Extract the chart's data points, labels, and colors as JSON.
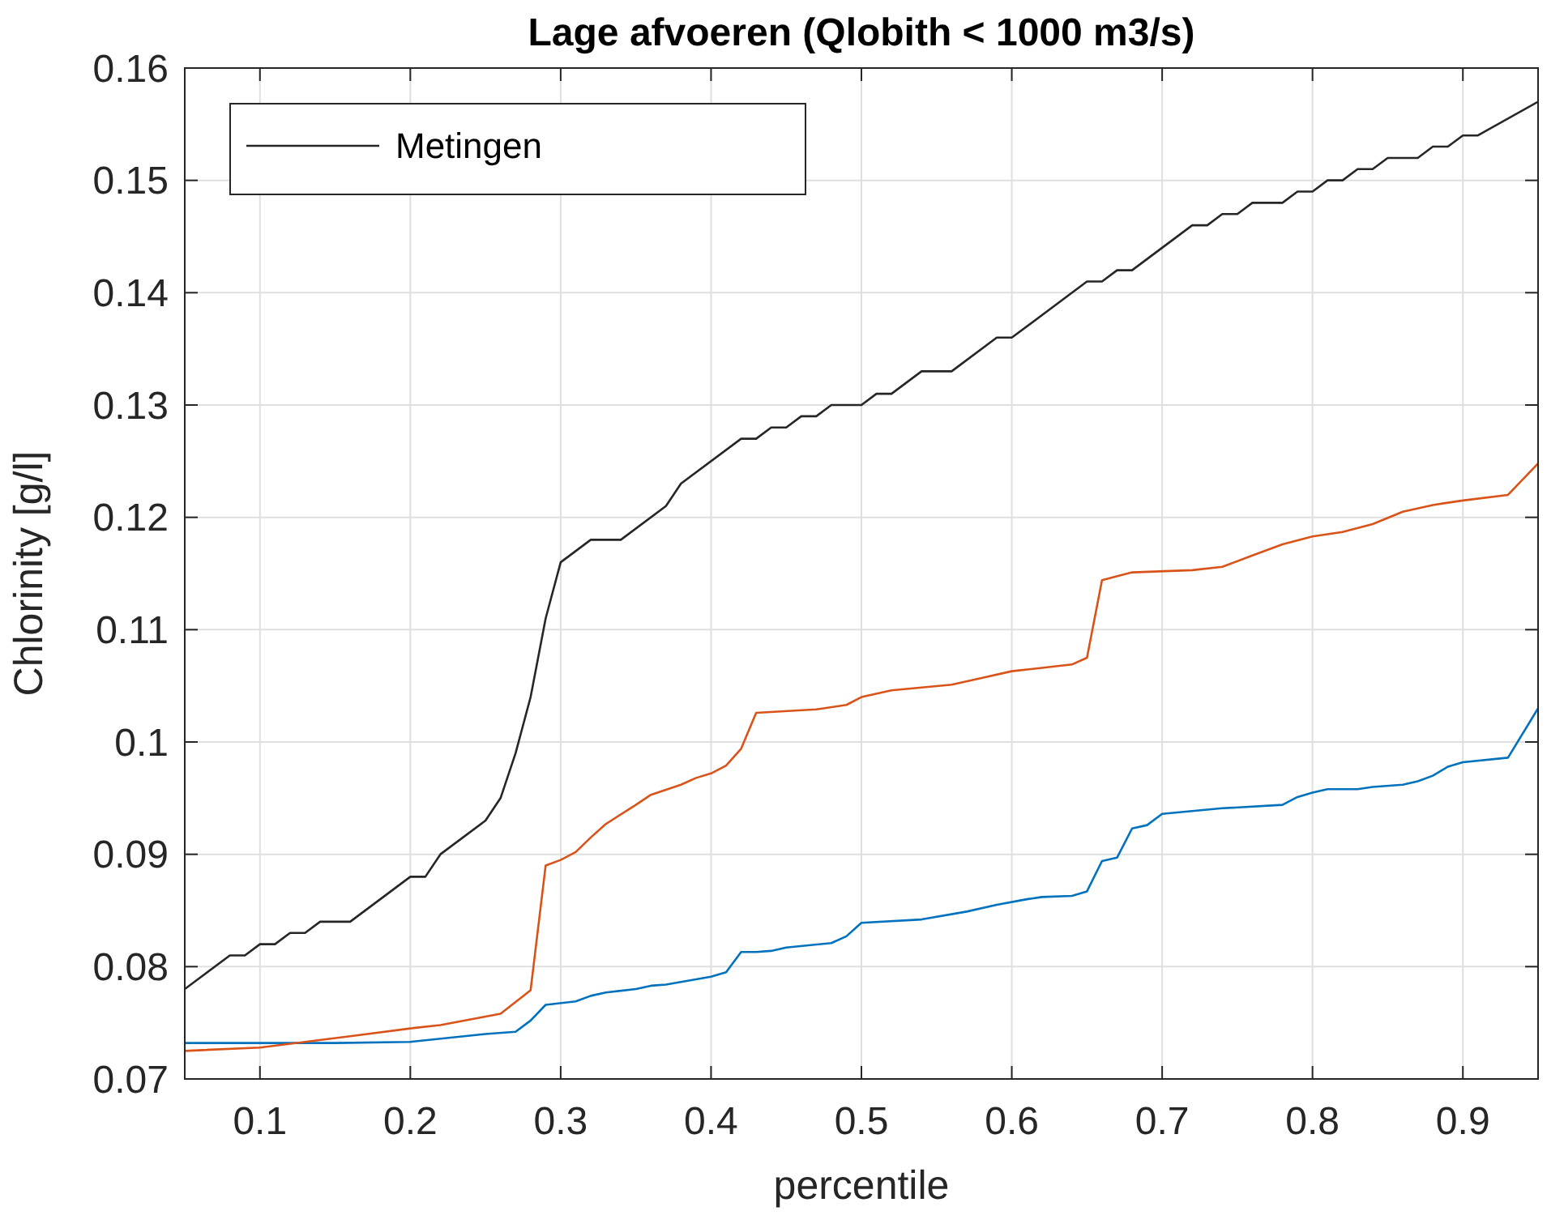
{
  "chart_data": {
    "type": "line",
    "title": "Lage afvoeren (Qlobith < 1000 m3/s)",
    "xlabel": "percentile",
    "ylabel": "Chlorinity [g/l]",
    "xlim": [
      0.05,
      0.95
    ],
    "xticks": [
      0.1,
      0.2,
      0.3,
      0.4,
      0.5,
      0.6,
      0.7,
      0.8,
      0.9
    ],
    "ylim": [
      0.07,
      0.16
    ],
    "yticks": [
      0.07,
      0.08,
      0.09,
      0.1,
      0.11,
      0.12,
      0.13,
      0.14,
      0.15,
      0.16
    ],
    "grid": true,
    "legend": "top left",
    "line_style": "solid",
    "series": [
      {
        "name": "Metingen",
        "color": "#262626",
        "x": [
          0.05,
          0.08,
          0.09,
          0.1,
          0.11,
          0.12,
          0.13,
          0.14,
          0.16,
          0.2,
          0.21,
          0.22,
          0.25,
          0.26,
          0.27,
          0.28,
          0.29,
          0.3,
          0.32,
          0.34,
          0.37,
          0.38,
          0.42,
          0.43,
          0.44,
          0.45,
          0.46,
          0.47,
          0.48,
          0.5,
          0.51,
          0.52,
          0.54,
          0.56,
          0.59,
          0.6,
          0.65,
          0.66,
          0.67,
          0.68,
          0.72,
          0.73,
          0.74,
          0.75,
          0.76,
          0.78,
          0.79,
          0.8,
          0.81,
          0.82,
          0.83,
          0.84,
          0.85,
          0.87,
          0.88,
          0.89,
          0.9,
          0.91,
          0.95
        ],
        "values": [
          0.078,
          0.081,
          0.081,
          0.082,
          0.082,
          0.083,
          0.083,
          0.084,
          0.084,
          0.088,
          0.088,
          0.09,
          0.093,
          0.095,
          0.099,
          0.104,
          0.111,
          0.116,
          0.118,
          0.118,
          0.121,
          0.123,
          0.127,
          0.127,
          0.128,
          0.128,
          0.129,
          0.129,
          0.13,
          0.13,
          0.131,
          0.131,
          0.133,
          0.133,
          0.136,
          0.136,
          0.141,
          0.141,
          0.142,
          0.142,
          0.146,
          0.146,
          0.147,
          0.147,
          0.148,
          0.148,
          0.149,
          0.149,
          0.15,
          0.15,
          0.151,
          0.151,
          0.152,
          0.152,
          0.153,
          0.153,
          0.154,
          0.154,
          0.157
        ]
      },
      {
        "color": "#0072bd",
        "x": [
          0.05,
          0.15,
          0.2,
          0.25,
          0.27,
          0.28,
          0.29,
          0.31,
          0.32,
          0.33,
          0.35,
          0.36,
          0.37,
          0.4,
          0.41,
          0.42,
          0.43,
          0.44,
          0.45,
          0.48,
          0.49,
          0.5,
          0.54,
          0.57,
          0.59,
          0.61,
          0.62,
          0.64,
          0.65,
          0.66,
          0.67,
          0.68,
          0.69,
          0.7,
          0.74,
          0.78,
          0.79,
          0.8,
          0.81,
          0.83,
          0.84,
          0.86,
          0.87,
          0.88,
          0.89,
          0.9,
          0.93,
          0.95
        ],
        "values": [
          0.0732,
          0.0732,
          0.0733,
          0.074,
          0.0742,
          0.0752,
          0.0766,
          0.0769,
          0.0774,
          0.0777,
          0.078,
          0.0783,
          0.0784,
          0.0791,
          0.0795,
          0.0813,
          0.0813,
          0.0814,
          0.0817,
          0.0821,
          0.0827,
          0.0839,
          0.0842,
          0.0849,
          0.0855,
          0.086,
          0.0862,
          0.0863,
          0.0867,
          0.0894,
          0.0897,
          0.0923,
          0.0926,
          0.0936,
          0.0941,
          0.0944,
          0.0951,
          0.0955,
          0.0958,
          0.0958,
          0.096,
          0.0962,
          0.0965,
          0.097,
          0.0978,
          0.0982,
          0.0986,
          0.103
        ]
      },
      {
        "color": "#d95319",
        "x": [
          0.05,
          0.1,
          0.13,
          0.16,
          0.2,
          0.22,
          0.24,
          0.26,
          0.28,
          0.29,
          0.3,
          0.31,
          0.32,
          0.33,
          0.35,
          0.36,
          0.38,
          0.39,
          0.4,
          0.41,
          0.42,
          0.43,
          0.47,
          0.49,
          0.5,
          0.52,
          0.56,
          0.58,
          0.6,
          0.62,
          0.64,
          0.65,
          0.66,
          0.68,
          0.72,
          0.74,
          0.76,
          0.78,
          0.8,
          0.82,
          0.84,
          0.86,
          0.88,
          0.9,
          0.93,
          0.95
        ],
        "values": [
          0.0725,
          0.0728,
          0.0733,
          0.0738,
          0.0745,
          0.0748,
          0.0753,
          0.0758,
          0.0779,
          0.089,
          0.0895,
          0.0902,
          0.0915,
          0.0927,
          0.0944,
          0.0953,
          0.0962,
          0.0968,
          0.0972,
          0.0979,
          0.0994,
          0.1026,
          0.1029,
          0.1033,
          0.104,
          0.1046,
          0.1051,
          0.1057,
          0.1063,
          0.1066,
          0.1069,
          0.1075,
          0.1144,
          0.1151,
          0.1153,
          0.1156,
          0.1166,
          0.1176,
          0.1183,
          0.1187,
          0.1194,
          0.1205,
          0.1211,
          0.1215,
          0.122,
          0.1248
        ]
      }
    ]
  }
}
